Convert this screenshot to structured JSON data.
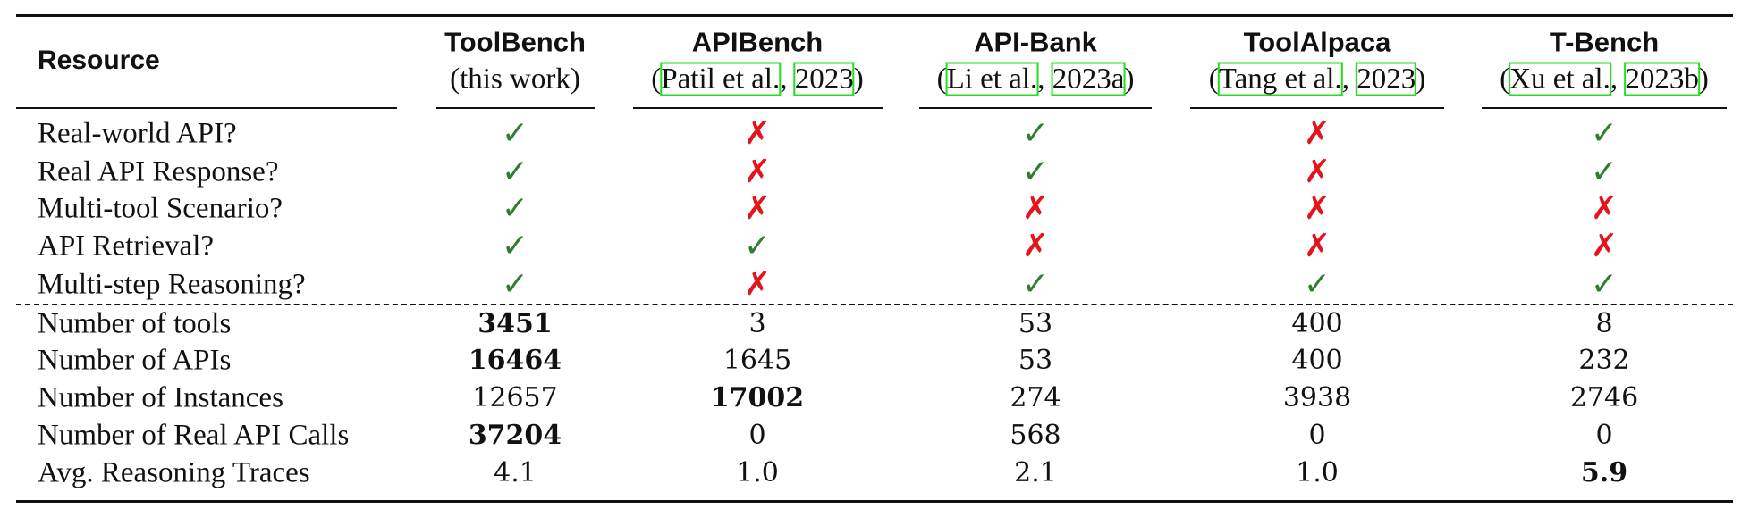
{
  "table": {
    "colors": {
      "check": "#2f7d2f",
      "cross": "#e5141b",
      "citation_box": "#22dd22"
    },
    "header": [
      {
        "title": "Resource"
      },
      {
        "title": "ToolBench",
        "subtitle_parts": [
          {
            "text": "(this work)"
          }
        ]
      },
      {
        "title": "APIBench",
        "subtitle_parts": [
          {
            "text": "("
          },
          {
            "text": "Patil et al.",
            "link": true
          },
          {
            "text": ", "
          },
          {
            "text": "2023",
            "link": true
          },
          {
            "text": ")"
          }
        ]
      },
      {
        "title": "API-Bank",
        "subtitle_parts": [
          {
            "text": "("
          },
          {
            "text": "Li et al.",
            "link": true
          },
          {
            "text": ", "
          },
          {
            "text": "2023a",
            "link": true
          },
          {
            "text": ")"
          }
        ]
      },
      {
        "title": "ToolAlpaca",
        "subtitle_parts": [
          {
            "text": "("
          },
          {
            "text": "Tang et al.",
            "link": true
          },
          {
            "text": ", "
          },
          {
            "text": "2023",
            "link": true
          },
          {
            "text": ")"
          }
        ]
      },
      {
        "title": "T-Bench",
        "subtitle_parts": [
          {
            "text": "("
          },
          {
            "text": "Xu et al.",
            "link": true
          },
          {
            "text": ", "
          },
          {
            "text": "2023b",
            "link": true
          },
          {
            "text": ")"
          }
        ]
      }
    ],
    "rows": [
      {
        "label": "Real-world API?",
        "cells": [
          {
            "text": "✓",
            "mark": "check"
          },
          {
            "text": "✗",
            "mark": "cross"
          },
          {
            "text": "✓",
            "mark": "check"
          },
          {
            "text": "✗",
            "mark": "cross"
          },
          {
            "text": "✓",
            "mark": "check"
          }
        ]
      },
      {
        "label": "Real API Response?",
        "cells": [
          {
            "text": "✓",
            "mark": "check"
          },
          {
            "text": "✗",
            "mark": "cross"
          },
          {
            "text": "✓",
            "mark": "check"
          },
          {
            "text": "✗",
            "mark": "cross"
          },
          {
            "text": "✓",
            "mark": "check"
          }
        ]
      },
      {
        "label": "Multi-tool Scenario?",
        "cells": [
          {
            "text": "✓",
            "mark": "check"
          },
          {
            "text": "✗",
            "mark": "cross"
          },
          {
            "text": "✗",
            "mark": "cross"
          },
          {
            "text": "✗",
            "mark": "cross"
          },
          {
            "text": "✗",
            "mark": "cross"
          }
        ]
      },
      {
        "label": "API Retrieval?",
        "cells": [
          {
            "text": "✓",
            "mark": "check"
          },
          {
            "text": "✓",
            "mark": "check"
          },
          {
            "text": "✗",
            "mark": "cross"
          },
          {
            "text": "✗",
            "mark": "cross"
          },
          {
            "text": "✗",
            "mark": "cross"
          }
        ]
      },
      {
        "label": "Multi-step Reasoning?",
        "cells": [
          {
            "text": "✓",
            "mark": "check"
          },
          {
            "text": "✗",
            "mark": "cross"
          },
          {
            "text": "✓",
            "mark": "check"
          },
          {
            "text": "✓",
            "mark": "check"
          },
          {
            "text": "✓",
            "mark": "check"
          }
        ],
        "divider_after": true
      },
      {
        "label": "Number of tools",
        "cells": [
          {
            "text": "3451",
            "bold": true
          },
          {
            "text": "3"
          },
          {
            "text": "53"
          },
          {
            "text": "400"
          },
          {
            "text": "8"
          }
        ]
      },
      {
        "label": "Number of APIs",
        "cells": [
          {
            "text": "16464",
            "bold": true
          },
          {
            "text": "1645"
          },
          {
            "text": "53"
          },
          {
            "text": "400"
          },
          {
            "text": "232"
          }
        ]
      },
      {
        "label": "Number of Instances",
        "cells": [
          {
            "text": "12657"
          },
          {
            "text": "17002",
            "bold": true
          },
          {
            "text": "274"
          },
          {
            "text": "3938"
          },
          {
            "text": "2746"
          }
        ]
      },
      {
        "label": "Number of Real API Calls",
        "cells": [
          {
            "text": "37204",
            "bold": true
          },
          {
            "text": "0"
          },
          {
            "text": "568"
          },
          {
            "text": "0"
          },
          {
            "text": "0"
          }
        ]
      },
      {
        "label": "Avg. Reasoning Traces",
        "cells": [
          {
            "text": "4.1"
          },
          {
            "text": "1.0"
          },
          {
            "text": "2.1"
          },
          {
            "text": "1.0"
          },
          {
            "text": "5.9",
            "bold": true
          }
        ]
      }
    ]
  }
}
